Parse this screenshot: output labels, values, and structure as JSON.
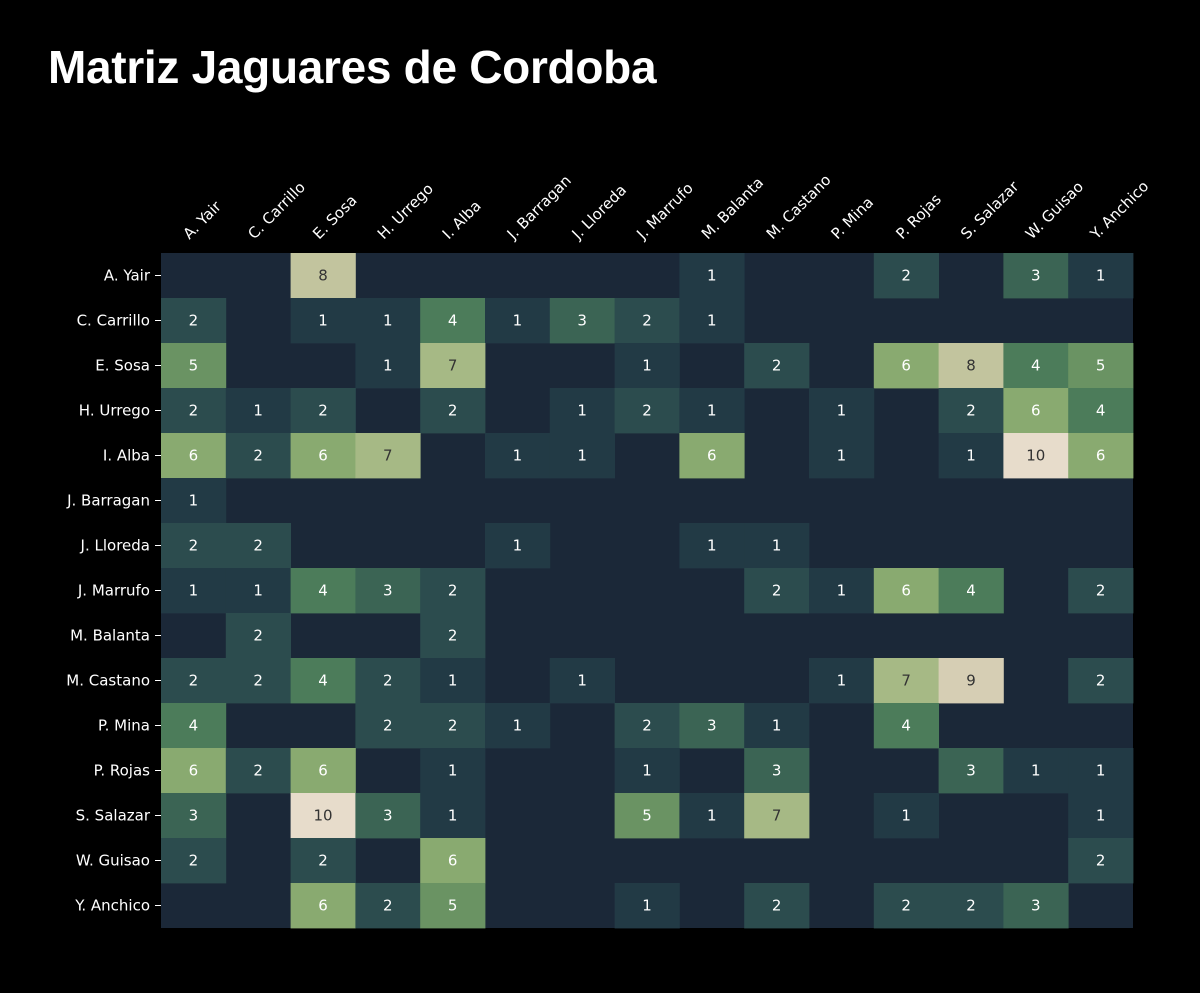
{
  "chart_data": {
    "type": "heatmap",
    "title": "Matriz Jaguares de Cordoba",
    "columns": [
      "A. Yair",
      "C. Carrillo",
      "E. Sosa",
      "H. Urrego",
      "I. Alba",
      "J. Barragan",
      "J. Lloreda",
      "J. Marrufo",
      "M. Balanta",
      "M. Castano",
      "P. Mina",
      "P. Rojas",
      "S. Salazar",
      "W. Guisao",
      "Y. Anchico"
    ],
    "rows": [
      "A. Yair",
      "C. Carrillo",
      "E. Sosa",
      "H. Urrego",
      "I. Alba",
      "J. Barragan",
      "J. Lloreda",
      "J. Marrufo",
      "M. Balanta",
      "M. Castano",
      "P. Mina",
      "P. Rojas",
      "S. Salazar",
      "W. Guisao",
      "Y. Anchico"
    ],
    "values": [
      [
        null,
        null,
        8,
        null,
        null,
        null,
        null,
        null,
        1,
        null,
        null,
        2,
        null,
        3,
        1
      ],
      [
        2,
        null,
        1,
        1,
        4,
        1,
        3,
        2,
        1,
        null,
        null,
        null,
        null,
        null,
        null
      ],
      [
        5,
        null,
        null,
        1,
        7,
        null,
        null,
        1,
        null,
        2,
        null,
        6,
        8,
        4,
        5
      ],
      [
        2,
        1,
        2,
        null,
        2,
        null,
        1,
        2,
        1,
        null,
        1,
        null,
        2,
        6,
        4
      ],
      [
        6,
        2,
        6,
        7,
        null,
        1,
        1,
        null,
        6,
        null,
        1,
        null,
        1,
        10,
        6
      ],
      [
        1,
        null,
        null,
        null,
        null,
        null,
        null,
        null,
        null,
        null,
        null,
        null,
        null,
        null,
        null
      ],
      [
        2,
        2,
        null,
        null,
        null,
        1,
        null,
        null,
        1,
        1,
        null,
        null,
        null,
        null,
        null
      ],
      [
        1,
        1,
        4,
        3,
        2,
        null,
        null,
        null,
        null,
        2,
        1,
        6,
        4,
        null,
        2
      ],
      [
        null,
        2,
        null,
        null,
        2,
        null,
        null,
        null,
        null,
        null,
        null,
        null,
        null,
        null,
        null
      ],
      [
        2,
        2,
        4,
        2,
        1,
        null,
        1,
        null,
        null,
        null,
        1,
        7,
        9,
        null,
        2
      ],
      [
        4,
        null,
        null,
        2,
        2,
        1,
        null,
        2,
        3,
        1,
        null,
        4,
        null,
        null,
        null
      ],
      [
        6,
        2,
        6,
        null,
        1,
        null,
        null,
        1,
        null,
        3,
        null,
        null,
        3,
        1,
        1
      ],
      [
        3,
        null,
        10,
        3,
        1,
        null,
        null,
        5,
        1,
        7,
        null,
        1,
        null,
        null,
        1
      ],
      [
        2,
        null,
        2,
        null,
        6,
        null,
        null,
        null,
        null,
        null,
        null,
        null,
        null,
        null,
        2
      ],
      [
        null,
        null,
        6,
        2,
        5,
        null,
        null,
        1,
        null,
        2,
        null,
        2,
        2,
        3,
        null
      ]
    ],
    "value_range": [
      0,
      10
    ],
    "colors": {
      "empty": "#1b2838",
      "scale": [
        "#1b2838",
        "#223a45",
        "#2c4c4e",
        "#3b6454",
        "#4c7c5a",
        "#6a9363",
        "#89aa70",
        "#a6b985",
        "#c2c49e",
        "#d6ceb4",
        "#e7dccb"
      ],
      "text_light": "#ffffff",
      "text_dark": "#333333"
    },
    "grid": false,
    "legend": "none"
  }
}
